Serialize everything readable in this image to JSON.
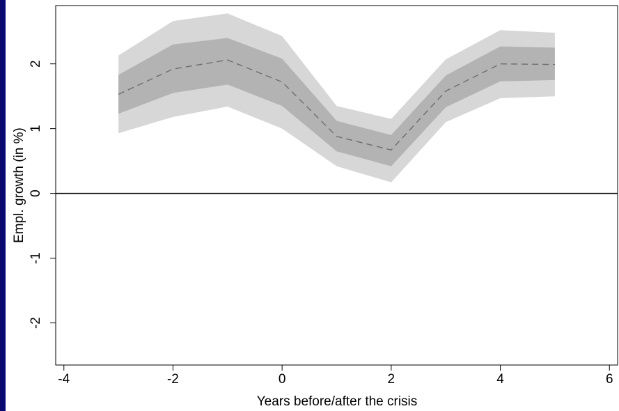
{
  "chart_data": {
    "type": "area",
    "xlabel": "Years before/after the crisis",
    "ylabel": "Empl. growth (in %)",
    "xlim": [
      -4.15,
      6.15
    ],
    "ylim": [
      -2.65,
      2.9
    ],
    "x_ticks": [
      -4,
      -2,
      0,
      2,
      4,
      6
    ],
    "x_tick_labels": [
      "-4",
      "-2",
      "0",
      "2",
      "4",
      "6"
    ],
    "y_ticks": [
      -2,
      -1,
      0,
      1,
      2
    ],
    "y_tick_labels": [
      "-2",
      "-1",
      "0",
      "1",
      "2"
    ],
    "reference_line_y": 0,
    "grid": false,
    "legend": "none",
    "x": [
      -3,
      -2,
      -1,
      0,
      1,
      2,
      3,
      4,
      5
    ],
    "series": [
      {
        "role": "outer-band",
        "lower": [
          0.93,
          1.18,
          1.34,
          1.0,
          0.42,
          0.17,
          1.1,
          1.47,
          1.5
        ],
        "upper": [
          2.13,
          2.66,
          2.78,
          2.43,
          1.35,
          1.15,
          2.07,
          2.52,
          2.48
        ],
        "color": "#d7d7d7"
      },
      {
        "role": "inner-band",
        "lower": [
          1.23,
          1.55,
          1.68,
          1.35,
          0.65,
          0.42,
          1.33,
          1.73,
          1.75
        ],
        "upper": [
          1.83,
          2.3,
          2.4,
          2.08,
          1.12,
          0.9,
          1.82,
          2.27,
          2.25
        ],
        "color": "#b3b3b3"
      },
      {
        "role": "estimate",
        "values": [
          1.53,
          1.92,
          2.06,
          1.72,
          0.88,
          0.67,
          1.58,
          2.0,
          1.99
        ],
        "color": "#6e6e6e",
        "dash": true
      }
    ]
  }
}
